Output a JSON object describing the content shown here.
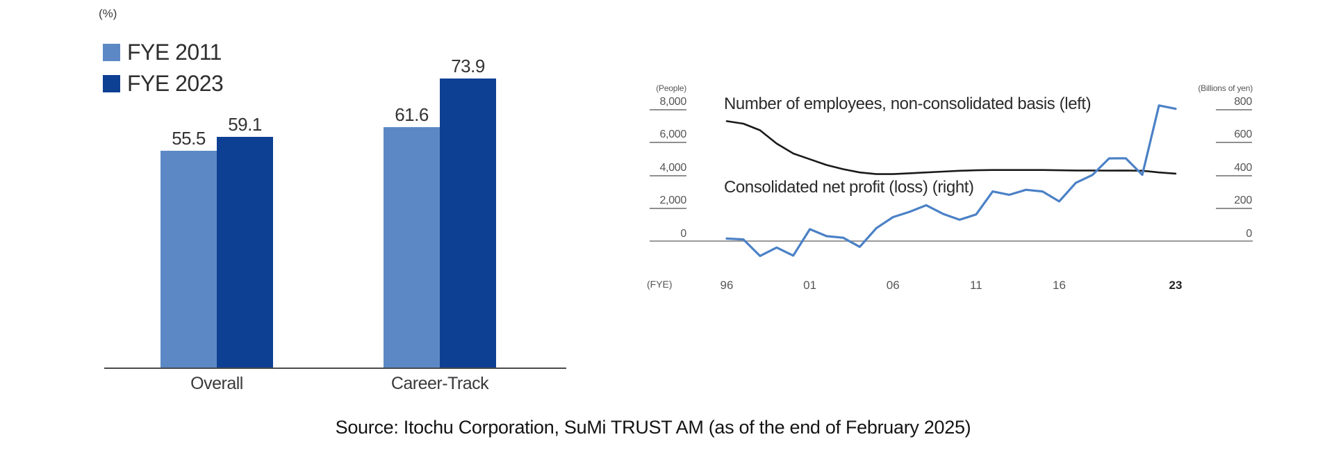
{
  "figure": {
    "source_note": "Source: Itochu Corporation, SuMi TRUST AM (as of the end of February 2025)"
  },
  "colors": {
    "light_blue": "#5c89c6",
    "dark_blue": "#0d4093",
    "line_blue": "#4b81c6",
    "line_black": "#1a1a1a",
    "axis_gray": "#9a9a9a",
    "tick_gray": "#8f8f8f",
    "text_dark": "#333333",
    "text_axis": "#555555"
  },
  "chart_data": [
    {
      "type": "bar",
      "title": "",
      "unit_label": "(%)",
      "categories": [
        "Overall",
        "Career-Track"
      ],
      "series": [
        {
          "name": "FYE 2011",
          "color": "#5c89c6",
          "values": [
            55.5,
            61.6
          ]
        },
        {
          "name": "FYE 2023",
          "color": "#0d4093",
          "values": [
            59.1,
            73.9
          ]
        }
      ],
      "ylim": [
        0,
        90
      ],
      "value_labels_shown": true,
      "legend_position": "top-left",
      "grid": false
    },
    {
      "type": "line",
      "title": "",
      "x_unit_label": "(FYE)",
      "x_tick_labels": [
        "96",
        "01",
        "06",
        "11",
        "16",
        "23"
      ],
      "x_tick_years": [
        1996,
        2001,
        2006,
        2011,
        2016,
        2023
      ],
      "years": [
        1996,
        1997,
        1998,
        1999,
        2000,
        2001,
        2002,
        2003,
        2004,
        2005,
        2006,
        2007,
        2008,
        2009,
        2010,
        2011,
        2012,
        2013,
        2014,
        2015,
        2016,
        2017,
        2018,
        2019,
        2020,
        2021,
        2022,
        2023
      ],
      "left_axis": {
        "unit_label": "(People)",
        "tick_labels": [
          "8,000",
          "6,000",
          "4,000",
          "2,000",
          "0"
        ],
        "tick_values": [
          8000,
          6000,
          4000,
          2000,
          0
        ],
        "range": [
          0,
          8000
        ]
      },
      "right_axis": {
        "unit_label": "(Billions of yen)",
        "tick_labels": [
          "800",
          "600",
          "400",
          "200",
          "0"
        ],
        "tick_values": [
          800,
          600,
          400,
          200,
          0
        ],
        "range": [
          0,
          800
        ]
      },
      "series": [
        {
          "name": "Number of employees, non-consolidated basis (left)",
          "axis": "left",
          "color": "#1a1a1a",
          "values": [
            7250,
            7100,
            6700,
            5900,
            5300,
            4950,
            4600,
            4350,
            4150,
            4050,
            4050,
            4100,
            4150,
            4200,
            4250,
            4280,
            4300,
            4300,
            4300,
            4300,
            4280,
            4270,
            4270,
            4260,
            4270,
            4250,
            4150,
            4080
          ]
        },
        {
          "name": "Consolidated net profit (loss) (right)",
          "axis": "right",
          "color": "#4b81c6",
          "values": [
            15,
            10,
            -90,
            -39,
            -88,
            72,
            30,
            20,
            -35,
            78,
            145,
            177,
            217,
            165,
            129,
            161,
            300,
            280,
            310,
            300,
            240,
            352,
            400,
            500,
            501,
            401,
            820,
            800
          ]
        }
      ],
      "grid": false,
      "legend_position": "inline-annotations"
    }
  ]
}
